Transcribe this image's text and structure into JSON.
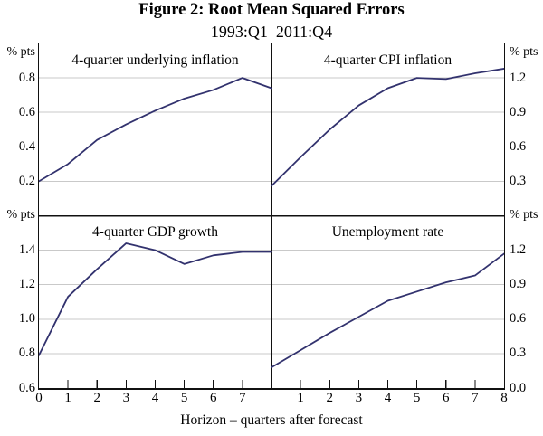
{
  "chart_data": {
    "type": "line",
    "title": "Figure 2: Root Mean Squared Errors",
    "subtitle": "1993:Q1–2011:Q4",
    "xlabel": "Horizon – quarters after forecast",
    "x": [
      0,
      1,
      2,
      3,
      4,
      5,
      6,
      7,
      8
    ],
    "x_tick_labels_left_panel": [
      "0",
      "1",
      "2",
      "3",
      "4",
      "5",
      "6",
      "7"
    ],
    "x_tick_labels_right_panel": [
      "1",
      "2",
      "3",
      "4",
      "5",
      "6",
      "7",
      "8"
    ],
    "line_color": "#32326e",
    "gridline_color": "#c9c9c9",
    "frame_color": "#111111",
    "grid": true,
    "legend": "none",
    "panels": [
      {
        "id": "underlying-inflation",
        "title": "4-quarter underlying inflation",
        "position": "top-left",
        "y_axis_side": "left",
        "unit": "% pts",
        "ylim": [
          0.0,
          1.0
        ],
        "yticks": [
          0.2,
          0.4,
          0.6,
          0.8
        ],
        "ytick_labels": [
          "0.2",
          "0.4",
          "0.6",
          "0.8"
        ],
        "values": [
          0.2,
          0.3,
          0.44,
          0.53,
          0.61,
          0.68,
          0.73,
          0.8,
          0.74
        ]
      },
      {
        "id": "cpi-inflation",
        "title": "4-quarter CPI inflation",
        "position": "top-right",
        "y_axis_side": "right",
        "unit": "% pts",
        "ylim": [
          0.0,
          1.5
        ],
        "yticks": [
          0.3,
          0.6,
          0.9,
          1.2
        ],
        "ytick_labels": [
          "0.3",
          "0.6",
          "0.9",
          "1.2"
        ],
        "values": [
          0.26,
          0.51,
          0.75,
          0.96,
          1.11,
          1.2,
          1.19,
          1.24,
          1.28
        ]
      },
      {
        "id": "gdp-growth",
        "title": "4-quarter GDP growth",
        "position": "bottom-left",
        "y_axis_side": "left",
        "unit": "% pts",
        "ylim": [
          0.6,
          1.6
        ],
        "yticks": [
          0.6,
          0.8,
          1.0,
          1.2,
          1.4
        ],
        "ytick_labels": [
          "0.6",
          "0.8",
          "1.0",
          "1.2",
          "1.4"
        ],
        "values": [
          0.79,
          1.13,
          1.29,
          1.44,
          1.4,
          1.32,
          1.37,
          1.39,
          1.39
        ]
      },
      {
        "id": "unemployment-rate",
        "title": "Unemployment rate",
        "position": "bottom-right",
        "y_axis_side": "right",
        "unit": "% pts",
        "ylim": [
          0.0,
          1.5
        ],
        "yticks": [
          0.0,
          0.3,
          0.6,
          0.9,
          1.2
        ],
        "ytick_labels": [
          "0.0",
          "0.3",
          "0.6",
          "0.9",
          "1.2"
        ],
        "values": [
          0.18,
          0.33,
          0.48,
          0.62,
          0.76,
          0.84,
          0.92,
          0.98,
          1.17
        ]
      }
    ]
  }
}
